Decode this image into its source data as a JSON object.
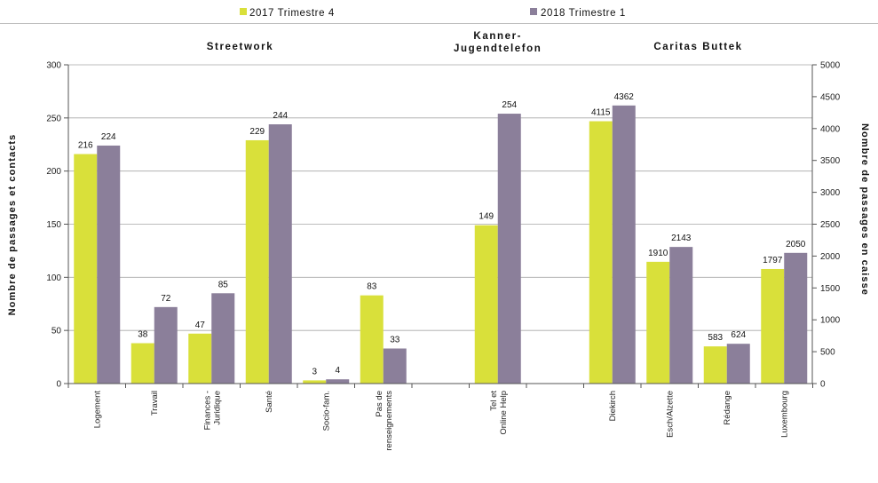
{
  "colors": {
    "s2017": "#d9e03a",
    "s2018": "#8b7f9a",
    "grid": "#a7a7a7",
    "axis": "#555555"
  },
  "chart_data": {
    "type": "bar",
    "legend_position": "top",
    "grid": true,
    "y_left": {
      "label": "Nombre de passages et contacts",
      "min": 0,
      "max": 300,
      "step": 50
    },
    "y_right": {
      "label": "Nombre de passages en caisse",
      "min": 0,
      "max": 5000,
      "step": 500
    },
    "series": [
      {
        "name": "2017 Trimestre 4"
      },
      {
        "name": "2018 Trimestre 1"
      }
    ],
    "groups": [
      {
        "title": "Streetwork",
        "axis": "left",
        "categories": [
          {
            "label": "Logement",
            "values": [
              216,
              224
            ]
          },
          {
            "label": "Travail",
            "values": [
              38,
              72
            ]
          },
          {
            "label": "Finances - Juridique",
            "values": [
              47,
              85
            ]
          },
          {
            "label": "Santé",
            "values": [
              229,
              244
            ]
          },
          {
            "label": "Socio-fam.",
            "values": [
              3,
              4
            ]
          },
          {
            "label": "Pas de renseignements",
            "values": [
              83,
              33
            ]
          }
        ]
      },
      {
        "title": "Kanner- Jugendtelefon",
        "axis": "left",
        "categories": [
          {
            "label": "Tel et Online Help",
            "values": [
              149,
              254
            ]
          }
        ]
      },
      {
        "title": "Caritas Buttek",
        "axis": "right",
        "categories": [
          {
            "label": "Diekirch",
            "values": [
              4115,
              4362
            ]
          },
          {
            "label": "Esch/Alzette",
            "values": [
              1910,
              2143
            ]
          },
          {
            "label": "Rédange",
            "values": [
              583,
              624
            ]
          },
          {
            "label": "Luxembourg",
            "values": [
              1797,
              2050
            ]
          }
        ]
      }
    ]
  }
}
